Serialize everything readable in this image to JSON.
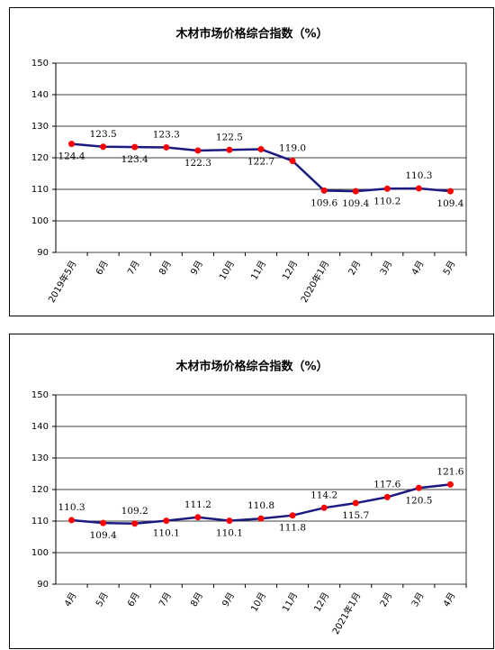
{
  "chart_data": [
    {
      "type": "line",
      "title": "木材市场价格综合指数（%）",
      "categories": [
        "2019年5月",
        "6月",
        "7月",
        "8月",
        "9月",
        "10月",
        "11月",
        "12月",
        "2020年1月",
        "2月",
        "3月",
        "4月",
        "5月"
      ],
      "series": [
        {
          "color": "#1a1a80",
          "marker_color": "#ff0000",
          "values": [
            124.4,
            123.5,
            123.4,
            123.3,
            122.3,
            122.5,
            122.7,
            119.0,
            109.6,
            109.4,
            110.2,
            110.3,
            109.4
          ],
          "value_labels": [
            "124.4",
            "123.5",
            "123.4",
            "123.3",
            "122.3",
            "122.5",
            "122.7",
            "119.0",
            "109.6",
            "109.4",
            "110.2",
            "110.3",
            "109.4"
          ]
        }
      ],
      "ylim": [
        90,
        150
      ],
      "yticks": [
        90,
        100,
        110,
        120,
        130,
        140,
        150
      ],
      "grid": true
    },
    {
      "type": "line",
      "title": "木材市场价格综合指数（%）",
      "categories": [
        "4月",
        "5月",
        "6月",
        "7月",
        "8月",
        "9月",
        "10月",
        "11月",
        "12月",
        "2021年1月",
        "2月",
        "3月",
        "4月"
      ],
      "series": [
        {
          "color": "#1a1a80",
          "marker_color": "#ff0000",
          "values": [
            110.3,
            109.4,
            109.2,
            110.1,
            111.2,
            110.1,
            110.8,
            111.8,
            114.2,
            115.7,
            117.6,
            120.5,
            121.6
          ]
        }
      ],
      "ylim": [
        90,
        150
      ],
      "yticks": [
        90,
        100,
        110,
        120,
        130,
        140,
        150
      ],
      "grid": true
    }
  ]
}
